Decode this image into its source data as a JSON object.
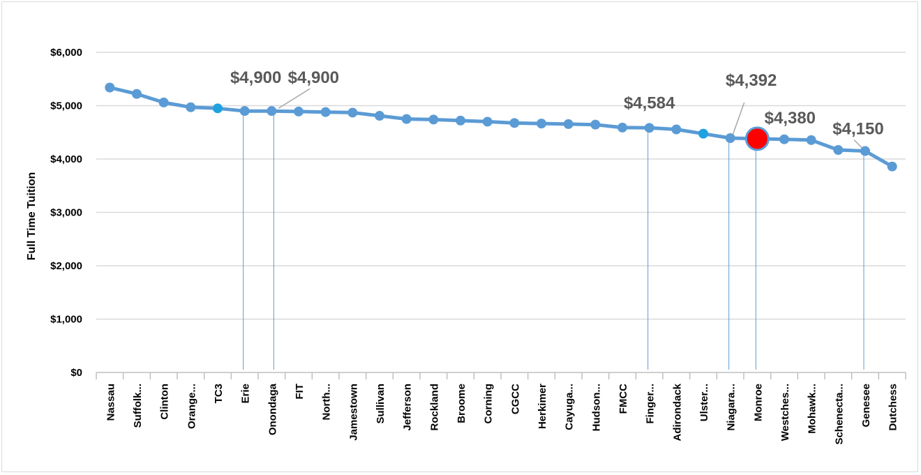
{
  "chart_data": {
    "type": "line",
    "title": "",
    "xlabel": "",
    "ylabel": "Full Time Tuition",
    "ylim": [
      0,
      6000
    ],
    "y_ticks": [
      "$0",
      "$1,000",
      "$2,000",
      "$3,000",
      "$4,000",
      "$5,000",
      "$6,000"
    ],
    "y_tick_values": [
      0,
      1000,
      2000,
      3000,
      4000,
      5000,
      6000
    ],
    "grid": true,
    "legend": "none",
    "line_color": "#5b9bd5",
    "highlight_color": "#ff0000",
    "categories": [
      "Nassau",
      "Suffolk...",
      "Clinton",
      "Orange...",
      "TC3",
      "Erie",
      "Onondaga",
      "FIT",
      "North...",
      "Jamestown",
      "Sullivan",
      "Jefferson",
      "Rockland",
      "Broome",
      "Corning",
      "CGCC",
      "Herkimer",
      "Cayuga...",
      "Hudson...",
      "FMCC",
      "Finger...",
      "Adirondack",
      "Ulster...",
      "Niagara...",
      "Monroe",
      "Westches...",
      "Mohawk...",
      "Schenecta...",
      "Genesee",
      "Dutchess"
    ],
    "series": [
      {
        "values": [
          5340,
          5220,
          5060,
          4970,
          4950,
          4900,
          4900,
          4890,
          4880,
          4870,
          4810,
          4750,
          4740,
          4720,
          4700,
          4675,
          4665,
          4655,
          4645,
          4590,
          4584,
          4555,
          4475,
          4392,
          4380,
          4370,
          4355,
          4170,
          4150,
          3860
        ]
      }
    ],
    "highlight_index": 24,
    "annotations": [
      {
        "index": 5,
        "text": "$4,900"
      },
      {
        "index": 6,
        "text": "$4,900"
      },
      {
        "index": 20,
        "text": "$4,584"
      },
      {
        "index": 23,
        "text": "$4,392"
      },
      {
        "index": 24,
        "text": "$4,380"
      },
      {
        "index": 28,
        "text": "$4,150"
      }
    ]
  }
}
